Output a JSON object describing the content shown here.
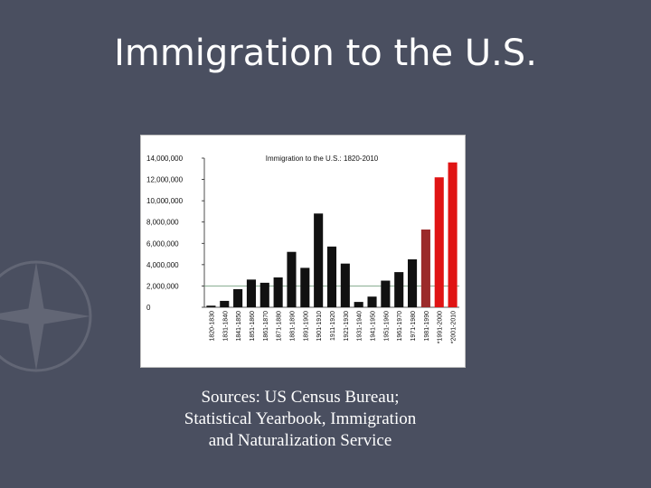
{
  "slide": {
    "title": "Immigration to the U.S.",
    "caption_lines": [
      "Sources: US Census Bureau;",
      "Statistical Yearbook, Immigration",
      "and Naturalization Service"
    ]
  },
  "colors": {
    "background": "#4a4f60",
    "bar_default": "#111111",
    "bar_1981": "#9b2a2a",
    "bar_recent": "#e01414",
    "frame": "#ffffff"
  },
  "chart_data": {
    "type": "bar",
    "title": "Immigration to the U.S.: 1820-2010",
    "xlabel": "",
    "ylabel": "",
    "ylim": [
      0,
      14000000
    ],
    "y_ticks": [
      "0",
      "2,000,000",
      "4,000,000",
      "6,000,000",
      "8,000,000",
      "10,000,000",
      "12,000,000",
      "14,000,000"
    ],
    "y_tick_values": [
      0,
      2000000,
      4000000,
      6000000,
      8000000,
      10000000,
      12000000,
      14000000
    ],
    "reference_line": 2000000,
    "categories": [
      "1820-1830",
      "1831-1840",
      "1841-1850",
      "1851-1860",
      "1861-1870",
      "1871-1880",
      "1881-1890",
      "1891-1900",
      "1901-1910",
      "1911-1920",
      "1921-1930",
      "1931-1940",
      "1941-1950",
      "1951-1960",
      "1961-1970",
      "1971-1980",
      "1981-1990",
      "*1991-2000",
      "*2001-2010"
    ],
    "values": [
      150000,
      600000,
      1700000,
      2600000,
      2300000,
      2800000,
      5200000,
      3700000,
      8800000,
      5700000,
      4100000,
      500000,
      1000000,
      2500000,
      3300000,
      4500000,
      7300000,
      12200000,
      13600000
    ],
    "bar_color_keys": [
      "bar_default",
      "bar_default",
      "bar_default",
      "bar_default",
      "bar_default",
      "bar_default",
      "bar_default",
      "bar_default",
      "bar_default",
      "bar_default",
      "bar_default",
      "bar_default",
      "bar_default",
      "bar_default",
      "bar_default",
      "bar_default",
      "bar_1981",
      "bar_recent",
      "bar_recent"
    ]
  }
}
